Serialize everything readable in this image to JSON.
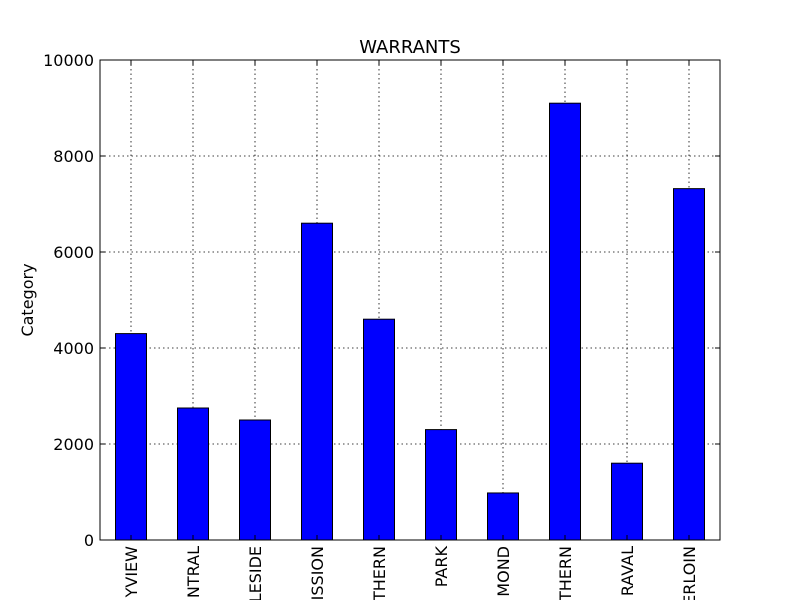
{
  "chart_data": {
    "type": "bar",
    "title": "WARRANTS",
    "xlabel": "",
    "ylabel": "Category",
    "categories": [
      "YVIEW",
      "NTRAL",
      "LESIDE",
      "ISSION",
      "THERN",
      "PARK",
      "MOND",
      "THERN",
      "RAVAL",
      "ERLOIN"
    ],
    "values": [
      4300,
      2750,
      2500,
      6600,
      4600,
      2300,
      980,
      9100,
      1600,
      7320
    ],
    "ylim": [
      0,
      10000
    ],
    "yticks": [
      0,
      2000,
      4000,
      6000,
      8000,
      10000
    ],
    "grid": true,
    "bar_color": "#0000ff",
    "edge_color": "#000000"
  }
}
